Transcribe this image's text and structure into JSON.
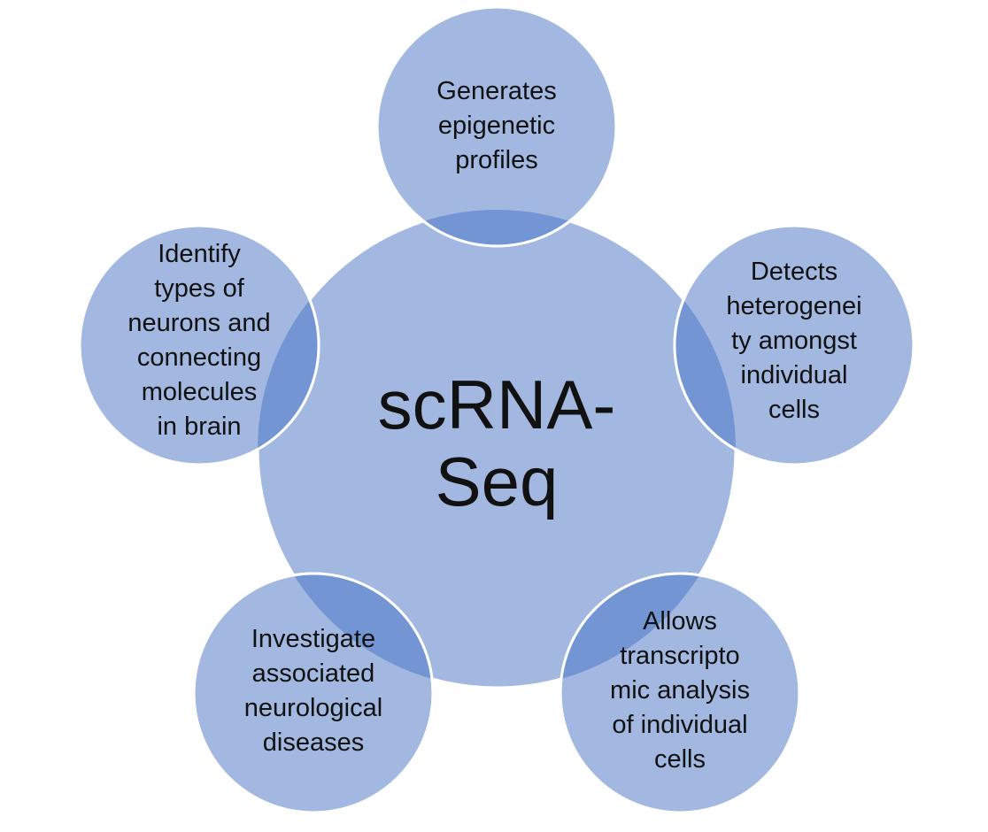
{
  "diagram": {
    "center": {
      "text": "scRNA-\nSeq"
    },
    "satellites": [
      {
        "id": "top",
        "text": "Generates\nepigenetic\nprofiles"
      },
      {
        "id": "right",
        "text": "Detects\nheterogenei\nty amongst\nindividual\ncells"
      },
      {
        "id": "bottom-right",
        "text": "Allows\ntranscripto\nmic analysis\nof individual\ncells"
      },
      {
        "id": "bottom-left",
        "text": "Investigate\nassociated\nneurological\ndiseases"
      },
      {
        "id": "left",
        "text": "Identify\ntypes of\nneurons and\nconnecting\nmolecules\nin brain"
      }
    ],
    "colors": {
      "circle_fill": "#A3B8E0",
      "overlap_fill": "#7395D3",
      "circle_stroke": "#FFFFFF",
      "text": "#111111"
    }
  }
}
